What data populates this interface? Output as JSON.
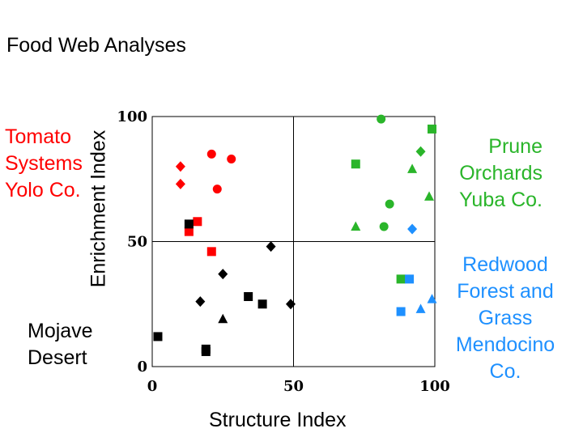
{
  "page_title": "Food Web Analyses",
  "annotations": {
    "tomato": [
      "Tomato",
      "Systems",
      "Yolo Co."
    ],
    "mojave": [
      "Mojave",
      "Desert"
    ],
    "prune": [
      "Prune",
      "Orchards",
      "Yuba Co."
    ],
    "redwood": [
      "Redwood",
      "Forest and",
      "Grass",
      "Mendocino",
      "Co."
    ]
  },
  "colors": {
    "tomato": "#ff0000",
    "mojave": "#000000",
    "prune": "#2ab52a",
    "redwood": "#1e90ff"
  },
  "chart_data": {
    "type": "scatter",
    "title": "",
    "xlabel": "Structure Index",
    "ylabel": "Enrichment Index",
    "xlim": [
      0,
      100
    ],
    "ylim": [
      0,
      100
    ],
    "x_ticks": [
      "0",
      "50",
      "100"
    ],
    "y_ticks": [
      "0",
      "50",
      "100"
    ],
    "grid": "quadrant lines at 50",
    "series": [
      {
        "group": "tomato",
        "points": [
          {
            "x": 10,
            "y": 80,
            "m": "diamond"
          },
          {
            "x": 10,
            "y": 73,
            "m": "diamond"
          },
          {
            "x": 21,
            "y": 85,
            "m": "circle"
          },
          {
            "x": 28,
            "y": 83,
            "m": "circle"
          },
          {
            "x": 23,
            "y": 71,
            "m": "circle"
          },
          {
            "x": 16,
            "y": 58,
            "m": "square"
          },
          {
            "x": 13,
            "y": 54,
            "m": "square"
          },
          {
            "x": 21,
            "y": 46,
            "m": "square"
          }
        ]
      },
      {
        "group": "mojave",
        "points": [
          {
            "x": 13,
            "y": 57,
            "m": "square"
          },
          {
            "x": 42,
            "y": 48,
            "m": "diamond"
          },
          {
            "x": 25,
            "y": 37,
            "m": "diamond"
          },
          {
            "x": 17,
            "y": 26,
            "m": "diamond"
          },
          {
            "x": 34,
            "y": 28,
            "m": "square"
          },
          {
            "x": 39,
            "y": 25,
            "m": "square"
          },
          {
            "x": 49,
            "y": 25,
            "m": "diamond"
          },
          {
            "x": 25,
            "y": 19,
            "m": "triangle"
          },
          {
            "x": 2,
            "y": 12,
            "m": "square"
          },
          {
            "x": 19,
            "y": 7,
            "m": "square"
          },
          {
            "x": 19,
            "y": 6,
            "m": "square"
          }
        ]
      },
      {
        "group": "prune",
        "points": [
          {
            "x": 81,
            "y": 99,
            "m": "circle"
          },
          {
            "x": 99,
            "y": 95,
            "m": "square"
          },
          {
            "x": 95,
            "y": 86,
            "m": "diamond"
          },
          {
            "x": 72,
            "y": 81,
            "m": "square"
          },
          {
            "x": 92,
            "y": 79,
            "m": "triangle"
          },
          {
            "x": 98,
            "y": 68,
            "m": "triangle"
          },
          {
            "x": 84,
            "y": 65,
            "m": "circle"
          },
          {
            "x": 72,
            "y": 56,
            "m": "triangle"
          },
          {
            "x": 82,
            "y": 56,
            "m": "circle"
          },
          {
            "x": 88,
            "y": 35,
            "m": "square"
          }
        ]
      },
      {
        "group": "redwood",
        "points": [
          {
            "x": 92,
            "y": 55,
            "m": "diamond"
          },
          {
            "x": 91,
            "y": 35,
            "m": "square"
          },
          {
            "x": 88,
            "y": 22,
            "m": "square"
          },
          {
            "x": 95,
            "y": 23,
            "m": "triangle"
          },
          {
            "x": 99,
            "y": 27,
            "m": "triangle"
          }
        ]
      }
    ]
  }
}
